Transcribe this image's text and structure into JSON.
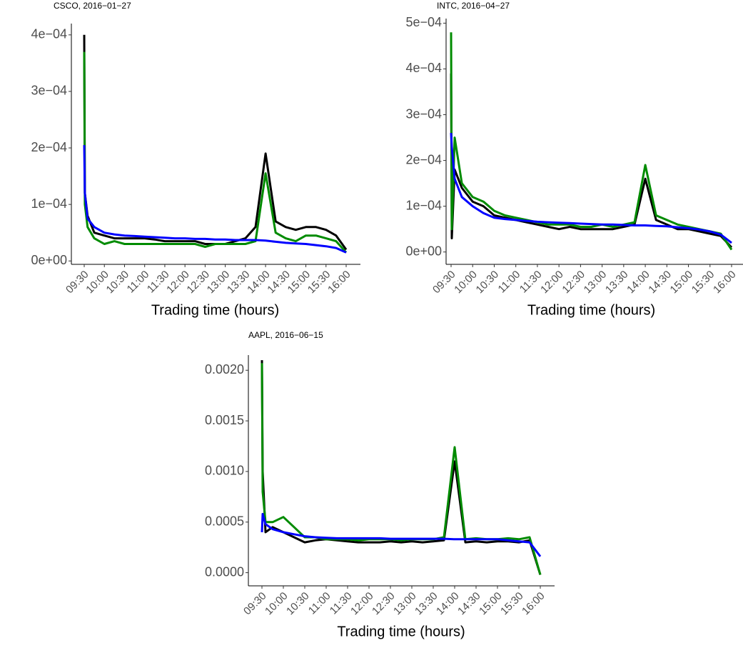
{
  "chart_data": [
    {
      "type": "line",
      "title": "CSCO, 2016−01−27",
      "x_label": "Trading time (hours)",
      "x": [
        "09:30",
        "09:31",
        "09:35",
        "09:45",
        "10:00",
        "10:15",
        "10:30",
        "10:45",
        "11:00",
        "11:15",
        "11:30",
        "11:45",
        "12:00",
        "12:15",
        "12:30",
        "12:45",
        "13:00",
        "13:15",
        "13:30",
        "13:45",
        "14:00",
        "14:15",
        "14:30",
        "14:45",
        "15:00",
        "15:15",
        "15:30",
        "15:45",
        "16:00"
      ],
      "series": [
        {
          "color": "#000000",
          "values": [
            0.0004,
            0.00012,
            8e-05,
            5e-05,
            4.5e-05,
            4e-05,
            4e-05,
            4e-05,
            4e-05,
            3.8e-05,
            3.5e-05,
            3.5e-05,
            3.5e-05,
            3.5e-05,
            3e-05,
            3e-05,
            3e-05,
            3.5e-05,
            4e-05,
            6e-05,
            0.00019,
            7e-05,
            6e-05,
            5.5e-05,
            6e-05,
            6e-05,
            5.5e-05,
            4.5e-05,
            2e-05
          ]
        },
        {
          "color": "#008b00",
          "values": [
            0.00037,
            0.0001,
            6e-05,
            4e-05,
            3e-05,
            3.5e-05,
            3e-05,
            3e-05,
            3e-05,
            3e-05,
            3e-05,
            3e-05,
            3e-05,
            3e-05,
            2.5e-05,
            3e-05,
            3e-05,
            3e-05,
            3e-05,
            3.5e-05,
            0.000155,
            5e-05,
            4e-05,
            3.5e-05,
            4.5e-05,
            4.5e-05,
            4e-05,
            3.5e-05,
            1.5e-05
          ]
        },
        {
          "color": "#0000ff",
          "values": [
            0.000205,
            0.00012,
            7.5e-05,
            6e-05,
            5e-05,
            4.7e-05,
            4.5e-05,
            4.4e-05,
            4.3e-05,
            4.2e-05,
            4.1e-05,
            4e-05,
            4e-05,
            3.9e-05,
            3.9e-05,
            3.8e-05,
            3.8e-05,
            3.7e-05,
            3.7e-05,
            3.7e-05,
            3.6e-05,
            3.4e-05,
            3.2e-05,
            3.1e-05,
            3e-05,
            2.8e-05,
            2.6e-05,
            2.3e-05,
            1.5e-05
          ]
        }
      ],
      "ylim": [
        -6e-06,
        0.00042
      ],
      "yticks": [
        {
          "value": 0,
          "label": "0e+00"
        },
        {
          "value": 0.0001,
          "label": "1e−04"
        },
        {
          "value": 0.0002,
          "label": "2e−04"
        },
        {
          "value": 0.0003,
          "label": "3e−04"
        },
        {
          "value": 0.0004,
          "label": "4e−04"
        }
      ],
      "xticks": [
        "09:30",
        "10:00",
        "10:30",
        "11:00",
        "11:30",
        "12:00",
        "12:30",
        "13:00",
        "13:30",
        "14:00",
        "14:30",
        "15:00",
        "15:30",
        "16:00"
      ]
    },
    {
      "type": "line",
      "title": "INTC, 2016−04−27",
      "x_label": "Trading time (hours)",
      "x": [
        "09:30",
        "09:31",
        "09:35",
        "09:45",
        "10:00",
        "10:15",
        "10:30",
        "10:45",
        "11:00",
        "11:15",
        "11:30",
        "11:45",
        "12:00",
        "12:15",
        "12:30",
        "12:45",
        "13:00",
        "13:15",
        "13:30",
        "13:45",
        "14:00",
        "14:15",
        "14:30",
        "14:45",
        "15:00",
        "15:15",
        "15:30",
        "15:45",
        "16:00"
      ],
      "series": [
        {
          "color": "#000000",
          "values": [
            0.00039,
            3e-05,
            0.00018,
            0.00014,
            0.00011,
            0.0001,
            8e-05,
            7.5e-05,
            7e-05,
            6.5e-05,
            6e-05,
            5.5e-05,
            5e-05,
            5.5e-05,
            5e-05,
            5e-05,
            5e-05,
            5e-05,
            5.5e-05,
            6e-05,
            0.00016,
            7e-05,
            6e-05,
            5e-05,
            5e-05,
            4.5e-05,
            4e-05,
            3.5e-05,
            1e-05
          ]
        },
        {
          "color": "#008b00",
          "values": [
            0.00048,
            5e-05,
            0.00025,
            0.00015,
            0.00012,
            0.00011,
            9e-05,
            8e-05,
            7.5e-05,
            7e-05,
            6.5e-05,
            6e-05,
            6e-05,
            6e-05,
            5.5e-05,
            5.5e-05,
            6e-05,
            5.5e-05,
            6e-05,
            6.5e-05,
            0.00019,
            8e-05,
            7e-05,
            6e-05,
            5.5e-05,
            5e-05,
            4.5e-05,
            4e-05,
            5e-06
          ]
        },
        {
          "color": "#0000ff",
          "values": [
            0.00026,
            0.00023,
            0.00016,
            0.00012,
            0.0001,
            8.5e-05,
            7.5e-05,
            7.2e-05,
            7e-05,
            6.8e-05,
            6.6e-05,
            6.5e-05,
            6.4e-05,
            6.3e-05,
            6.2e-05,
            6.1e-05,
            6e-05,
            6e-05,
            5.9e-05,
            5.8e-05,
            5.8e-05,
            5.7e-05,
            5.6e-05,
            5.4e-05,
            5.2e-05,
            4.9e-05,
            4.5e-05,
            3.8e-05,
            2e-05
          ]
        }
      ],
      "ylim": [
        -2.7e-05,
        0.00051
      ],
      "yticks": [
        {
          "value": 0,
          "label": "0e+00"
        },
        {
          "value": 0.0001,
          "label": "1e−04"
        },
        {
          "value": 0.0002,
          "label": "2e−04"
        },
        {
          "value": 0.0003,
          "label": "3e−04"
        },
        {
          "value": 0.0004,
          "label": "4e−04"
        },
        {
          "value": 0.0005,
          "label": "5e−04"
        }
      ],
      "xticks": [
        "09:30",
        "10:00",
        "10:30",
        "11:00",
        "11:30",
        "12:00",
        "12:30",
        "13:00",
        "13:30",
        "14:00",
        "14:30",
        "15:00",
        "15:30",
        "16:00"
      ]
    },
    {
      "type": "line",
      "title": "AAPL, 2016−06−15",
      "x_label": "Trading time (hours)",
      "x": [
        "09:30",
        "09:31",
        "09:35",
        "09:45",
        "10:00",
        "10:15",
        "10:30",
        "10:45",
        "11:00",
        "11:15",
        "11:30",
        "11:45",
        "12:00",
        "12:15",
        "12:30",
        "12:45",
        "13:00",
        "13:15",
        "13:30",
        "13:45",
        "14:00",
        "14:15",
        "14:30",
        "14:45",
        "15:00",
        "15:15",
        "15:30",
        "15:45",
        "16:00"
      ],
      "series": [
        {
          "color": "#000000",
          "values": [
            0.0021,
            0.001,
            0.0004,
            0.00045,
            0.0004,
            0.00035,
            0.0003,
            0.00032,
            0.00033,
            0.00032,
            0.00031,
            0.0003,
            0.0003,
            0.0003,
            0.00031,
            0.0003,
            0.00031,
            0.0003,
            0.00031,
            0.00032,
            0.0011,
            0.0003,
            0.00031,
            0.0003,
            0.00031,
            0.00031,
            0.0003,
            0.00032,
            -2e-05
          ]
        },
        {
          "color": "#008b00",
          "values": [
            0.00207,
            0.0008,
            0.0005,
            0.0005,
            0.00055,
            0.00045,
            0.00035,
            0.00035,
            0.00033,
            0.00033,
            0.00033,
            0.00032,
            0.00033,
            0.00033,
            0.00033,
            0.00032,
            0.00033,
            0.00033,
            0.00033,
            0.00035,
            0.00124,
            0.00033,
            0.00034,
            0.00033,
            0.00033,
            0.00034,
            0.00033,
            0.00035,
            -2e-05
          ]
        },
        {
          "color": "#0000ff",
          "values": [
            0.0004,
            0.00058,
            0.00048,
            0.00043,
            0.0004,
            0.00038,
            0.00036,
            0.00035,
            0.000345,
            0.00034,
            0.00034,
            0.00034,
            0.00034,
            0.00034,
            0.000335,
            0.000335,
            0.000335,
            0.000335,
            0.000335,
            0.000335,
            0.00033,
            0.00033,
            0.00033,
            0.00033,
            0.00033,
            0.00032,
            0.00031,
            0.0003,
            0.00016
          ]
        }
      ],
      "ylim": [
        -0.00013,
        0.00215
      ],
      "yticks": [
        {
          "value": 0,
          "label": "0.0000"
        },
        {
          "value": 0.0005,
          "label": "0.0005"
        },
        {
          "value": 0.001,
          "label": "0.0010"
        },
        {
          "value": 0.0015,
          "label": "0.0015"
        },
        {
          "value": 0.002,
          "label": "0.0020"
        }
      ],
      "xticks": [
        "09:30",
        "10:00",
        "10:30",
        "11:00",
        "11:30",
        "12:00",
        "12:30",
        "13:00",
        "13:30",
        "14:00",
        "14:30",
        "15:00",
        "15:30",
        "16:00"
      ]
    }
  ]
}
